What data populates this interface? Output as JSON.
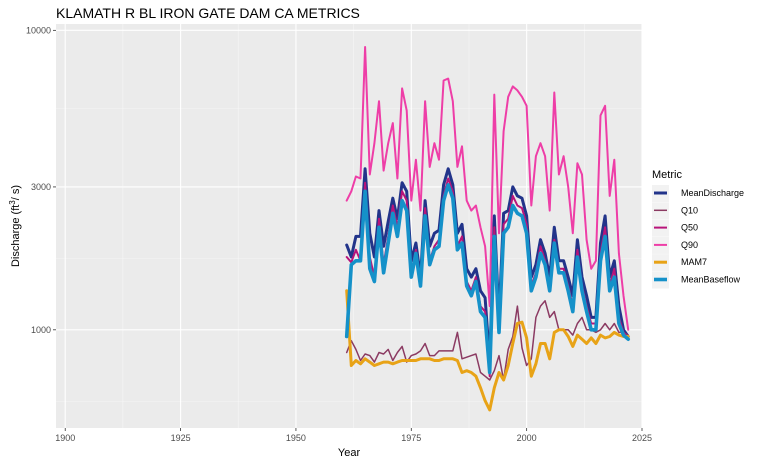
{
  "chart_data": {
    "type": "line",
    "title": "KLAMATH R BL IRON GATE DAM CA  METRICS",
    "xlabel": "Year",
    "ylabel_main": "Discharge (ft",
    "ylabel_sup": "3",
    "ylabel_tail": "/ s)",
    "xlim": [
      1898,
      2025
    ],
    "ylim": [
      470,
      10500
    ],
    "y_scale": "log",
    "x_ticks": [
      1900,
      1925,
      1950,
      1975,
      2000,
      2025
    ],
    "y_ticks": [
      1000,
      3000,
      10000
    ],
    "y_tick_labels": [
      "1000",
      "3000",
      "10000"
    ],
    "legend": {
      "title": "Metric",
      "position": "right"
    },
    "series": [
      {
        "name": "MeanDischarge",
        "color": "#22348a",
        "width": 3,
        "x": [
          1961,
          1962,
          1963,
          1964,
          1965,
          1966,
          1967,
          1968,
          1969,
          1970,
          1971,
          1972,
          1973,
          1974,
          1975,
          1976,
          1977,
          1978,
          1979,
          1980,
          1981,
          1982,
          1983,
          1984,
          1985,
          1986,
          1987,
          1988,
          1989,
          1990,
          1991,
          1992,
          1993,
          1994,
          1995,
          1996,
          1997,
          1998,
          1999,
          2000,
          2001,
          2002,
          2003,
          2004,
          2005,
          2006,
          2007,
          2008,
          2009,
          2010,
          2011,
          2012,
          2013,
          2014,
          2015,
          2016,
          2017,
          2018,
          2019,
          2020,
          2021,
          2022
        ],
        "y": [
          1920,
          1750,
          2050,
          2050,
          3450,
          2100,
          1750,
          2500,
          1900,
          2300,
          2750,
          2350,
          3100,
          2900,
          1700,
          1950,
          1500,
          2700,
          1900,
          2100,
          2150,
          3050,
          3450,
          3050,
          2100,
          2250,
          1600,
          1500,
          1600,
          1350,
          1280,
          780,
          2400,
          1100,
          2450,
          2500,
          3000,
          2800,
          2750,
          2400,
          1500,
          1650,
          2000,
          1800,
          1500,
          2200,
          1700,
          1700,
          1500,
          1300,
          2000,
          1500,
          1300,
          1100,
          1100,
          1950,
          2400,
          1500,
          1700,
          1200,
          1000,
          950
        ]
      },
      {
        "name": "Q10",
        "color": "#8b3a62",
        "width": 1.5,
        "x": [
          1961,
          1962,
          1963,
          1964,
          1965,
          1966,
          1967,
          1968,
          1969,
          1970,
          1971,
          1972,
          1973,
          1974,
          1975,
          1976,
          1977,
          1978,
          1979,
          1980,
          1981,
          1982,
          1983,
          1984,
          1985,
          1986,
          1987,
          1988,
          1989,
          1990,
          1991,
          1992,
          1993,
          1994,
          1995,
          1996,
          1997,
          1998,
          1999,
          2000,
          2001,
          2002,
          2003,
          2004,
          2005,
          2006,
          2007,
          2008,
          2009,
          2010,
          2011,
          2012,
          2013,
          2014,
          2015,
          2016,
          2017,
          2018,
          2019,
          2020,
          2021,
          2022
        ],
        "y": [
          840,
          920,
          860,
          790,
          830,
          820,
          780,
          840,
          830,
          860,
          790,
          840,
          880,
          780,
          820,
          830,
          850,
          900,
          820,
          820,
          850,
          850,
          850,
          850,
          980,
          800,
          810,
          820,
          830,
          720,
          700,
          680,
          730,
          820,
          680,
          860,
          950,
          1200,
          870,
          760,
          800,
          1100,
          1200,
          1250,
          1100,
          1150,
          1000,
          1000,
          1000,
          960,
          1050,
          1100,
          1000,
          1000,
          980,
          1000,
          1050,
          1000,
          1050,
          980,
          980,
          960
        ]
      },
      {
        "name": "Q50",
        "color": "#b8147a",
        "width": 2,
        "x": [
          1961,
          1962,
          1963,
          1964,
          1965,
          1966,
          1967,
          1968,
          1969,
          1970,
          1971,
          1972,
          1973,
          1974,
          1975,
          1976,
          1977,
          1978,
          1979,
          1980,
          1981,
          1982,
          1983,
          1984,
          1985,
          1986,
          1987,
          1988,
          1989,
          1990,
          1991,
          1992,
          1993,
          1994,
          1995,
          1996,
          1997,
          1998,
          1999,
          2000,
          2001,
          2002,
          2003,
          2004,
          2005,
          2006,
          2007,
          2008,
          2009,
          2010,
          2011,
          2012,
          2013,
          2014,
          2015,
          2016,
          2017,
          2018,
          2019,
          2020,
          2021,
          2022
        ],
        "y": [
          1750,
          1680,
          1850,
          1700,
          3100,
          1750,
          1500,
          2350,
          1650,
          2050,
          2600,
          2200,
          2900,
          2700,
          1550,
          1850,
          1400,
          2550,
          1700,
          1900,
          2000,
          2800,
          3200,
          2900,
          1900,
          2050,
          1450,
          1350,
          1500,
          1200,
          1150,
          700,
          2200,
          1000,
          2250,
          2350,
          2800,
          2600,
          2550,
          2250,
          1400,
          1550,
          1900,
          1700,
          1400,
          2000,
          1600,
          1600,
          1400,
          1200,
          1850,
          1400,
          1200,
          1050,
          1050,
          1800,
          2200,
          1400,
          1600,
          1100,
          980,
          940
        ]
      },
      {
        "name": "Q90",
        "color": "#ee3ea7",
        "width": 2,
        "x": [
          1961,
          1962,
          1963,
          1964,
          1965,
          1966,
          1967,
          1968,
          1969,
          1970,
          1971,
          1972,
          1973,
          1974,
          1975,
          1976,
          1977,
          1978,
          1979,
          1980,
          1981,
          1982,
          1983,
          1984,
          1985,
          1986,
          1987,
          1988,
          1989,
          1990,
          1991,
          1992,
          1993,
          1994,
          1995,
          1996,
          1997,
          1998,
          1999,
          2000,
          2001,
          2002,
          2003,
          2004,
          2005,
          2006,
          2007,
          2008,
          2009,
          2010,
          2011,
          2012,
          2013,
          2014,
          2015,
          2016,
          2017,
          2018,
          2019,
          2020,
          2021,
          2022
        ],
        "y": [
          2700,
          2900,
          3250,
          3200,
          8800,
          3300,
          4200,
          5800,
          3400,
          4200,
          4900,
          3200,
          6400,
          5400,
          2700,
          3700,
          2500,
          5800,
          3500,
          4200,
          3700,
          6800,
          6900,
          5800,
          3500,
          4100,
          2700,
          2500,
          2600,
          2200,
          1900,
          1200,
          6100,
          2100,
          4600,
          6000,
          6500,
          6300,
          6000,
          5600,
          2600,
          3800,
          4200,
          3800,
          2500,
          6200,
          3300,
          3800,
          3000,
          2100,
          3600,
          3300,
          2000,
          1600,
          1700,
          5200,
          5600,
          2800,
          3700,
          1800,
          1300,
          1000
        ]
      },
      {
        "name": "MAM7",
        "color": "#e8a317",
        "width": 3,
        "x": [
          1961,
          1962,
          1963,
          1964,
          1965,
          1966,
          1967,
          1968,
          1969,
          1970,
          1971,
          1972,
          1973,
          1974,
          1975,
          1976,
          1977,
          1978,
          1979,
          1980,
          1981,
          1982,
          1983,
          1984,
          1985,
          1986,
          1987,
          1988,
          1989,
          1990,
          1991,
          1992,
          1993,
          1994,
          1995,
          1996,
          1997,
          1998,
          1999,
          2000,
          2001,
          2002,
          2003,
          2004,
          2005,
          2006,
          2007,
          2008,
          2009,
          2010,
          2011,
          2012,
          2013,
          2014,
          2015,
          2016,
          2017,
          2018,
          2019,
          2020,
          2021,
          2022
        ],
        "y": [
          1350,
          760,
          790,
          770,
          800,
          780,
          760,
          770,
          780,
          780,
          770,
          780,
          790,
          790,
          790,
          790,
          800,
          800,
          800,
          790,
          790,
          800,
          800,
          800,
          790,
          720,
          730,
          720,
          700,
          640,
          580,
          540,
          640,
          720,
          680,
          760,
          900,
          1050,
          1060,
          940,
          700,
          770,
          900,
          900,
          800,
          980,
          1000,
          1000,
          950,
          880,
          960,
          930,
          900,
          940,
          900,
          960,
          940,
          950,
          980,
          960,
          950,
          950
        ]
      },
      {
        "name": "MeanBaseflow",
        "color": "#1591c9",
        "width": 3.6,
        "x": [
          1961,
          1962,
          1963,
          1964,
          1965,
          1966,
          1967,
          1968,
          1969,
          1970,
          1971,
          1972,
          1973,
          1974,
          1975,
          1976,
          1977,
          1978,
          1979,
          1980,
          1981,
          1982,
          1983,
          1984,
          1985,
          1986,
          1987,
          1988,
          1989,
          1990,
          1991,
          1992,
          1993,
          1994,
          1995,
          1996,
          1997,
          1998,
          1999,
          2000,
          2001,
          2002,
          2003,
          2004,
          2005,
          2006,
          2007,
          2008,
          2009,
          2010,
          2011,
          2012,
          2013,
          2014,
          2015,
          2016,
          2017,
          2018,
          2019,
          2020,
          2021,
          2022
        ],
        "y": [
          950,
          1650,
          1700,
          1700,
          2900,
          1600,
          1450,
          2200,
          1550,
          1950,
          2450,
          2050,
          2700,
          2500,
          1500,
          1800,
          1400,
          2400,
          1650,
          1850,
          1900,
          2700,
          3050,
          2750,
          1850,
          1950,
          1400,
          1300,
          1450,
          1150,
          1100,
          720,
          2050,
          980,
          2100,
          2200,
          2600,
          2450,
          2400,
          2100,
          1350,
          1500,
          1800,
          1650,
          1350,
          1950,
          1550,
          1550,
          1350,
          1150,
          1750,
          1350,
          1150,
          1000,
          1000,
          1700,
          2050,
          1350,
          1500,
          1050,
          960,
          930
        ]
      }
    ]
  }
}
